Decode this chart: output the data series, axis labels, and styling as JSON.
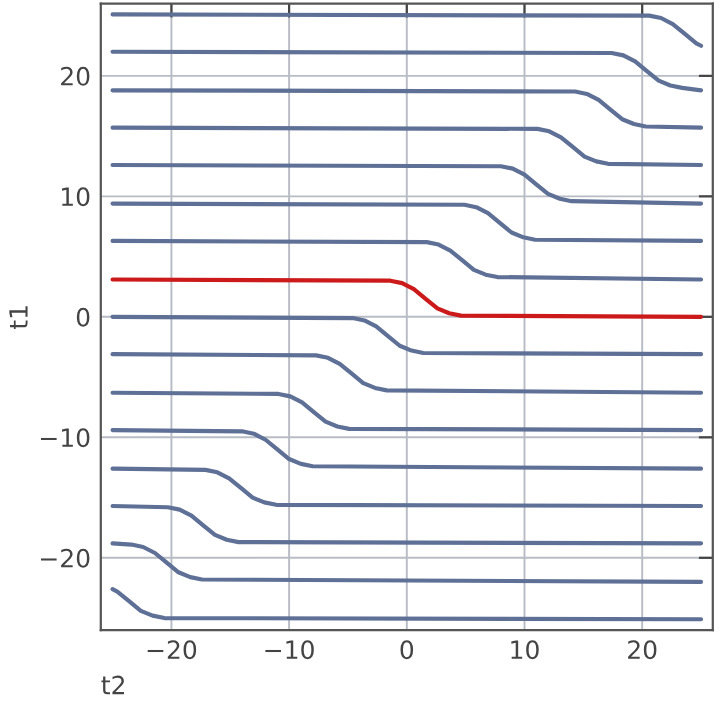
{
  "chart_data": {
    "type": "line",
    "xlabel": "t2",
    "ylabel": "t1",
    "xlim": [
      -26,
      26
    ],
    "ylim": [
      -26,
      26
    ],
    "xticks": [
      -20,
      -10,
      0,
      10,
      20
    ],
    "yticks": [
      -20,
      -10,
      0,
      10,
      20
    ],
    "grid": true,
    "legend": false,
    "marker": "none",
    "line_style": "solid",
    "series": [
      {
        "color": "#5f7096",
        "x": [
          -25,
          20.6,
          21.6,
          22.6,
          23.6,
          24.6,
          25
        ],
        "values": [
          25.1,
          25.0,
          24.8,
          24.3,
          23.5,
          22.7,
          22.5
        ]
      },
      {
        "color": "#5f7096",
        "x": [
          -25,
          17.4,
          18.4,
          19.4,
          20.4,
          21.4,
          22.4,
          23.4,
          25
        ],
        "values": [
          22.0,
          21.9,
          21.7,
          21.2,
          20.4,
          19.6,
          19.2,
          19.0,
          18.8
        ]
      },
      {
        "color": "#5f7096",
        "x": [
          -25,
          14.3,
          15.3,
          16.3,
          17.3,
          18.3,
          19.3,
          20.3,
          25
        ],
        "values": [
          18.8,
          18.7,
          18.5,
          18.0,
          17.2,
          16.4,
          16.0,
          15.8,
          15.7
        ]
      },
      {
        "color": "#5f7096",
        "x": [
          -25,
          11.1,
          12.1,
          13.1,
          14.1,
          15.1,
          16.1,
          17.1,
          25
        ],
        "values": [
          15.7,
          15.6,
          15.4,
          14.9,
          14.1,
          13.3,
          12.9,
          12.7,
          12.6
        ]
      },
      {
        "color": "#5f7096",
        "x": [
          -25,
          8,
          9,
          10,
          11,
          12,
          13,
          14,
          25
        ],
        "values": [
          12.6,
          12.5,
          12.3,
          11.8,
          11.0,
          10.2,
          9.8,
          9.6,
          9.4
        ]
      },
      {
        "color": "#5f7096",
        "x": [
          -25,
          4.9,
          5.9,
          6.9,
          7.9,
          8.9,
          9.9,
          10.9,
          25
        ],
        "values": [
          9.4,
          9.3,
          9.1,
          8.6,
          7.8,
          7.0,
          6.6,
          6.4,
          6.3
        ]
      },
      {
        "color": "#5f7096",
        "x": [
          -25,
          1.7,
          2.7,
          3.7,
          4.7,
          5.7,
          6.7,
          7.7,
          25
        ],
        "values": [
          6.3,
          6.2,
          6.0,
          5.5,
          4.7,
          3.9,
          3.5,
          3.3,
          3.1
        ]
      },
      {
        "color": "#cc1a1a",
        "x": [
          -25,
          -1.4,
          -0.4,
          0.6,
          1.6,
          2.6,
          3.6,
          4.6,
          25
        ],
        "values": [
          3.1,
          3.0,
          2.8,
          2.3,
          1.5,
          0.7,
          0.3,
          0.1,
          0
        ]
      },
      {
        "color": "#5f7096",
        "x": [
          -25,
          -4.6,
          -3.6,
          -2.6,
          -1.6,
          -0.6,
          0.4,
          1.4,
          25
        ],
        "values": [
          0,
          -0.1,
          -0.3,
          -0.8,
          -1.6,
          -2.4,
          -2.8,
          -3.0,
          -3.1
        ]
      },
      {
        "color": "#5f7096",
        "x": [
          -25,
          -7.7,
          -6.7,
          -5.7,
          -4.7,
          -3.7,
          -2.7,
          -1.7,
          25
        ],
        "values": [
          -3.1,
          -3.2,
          -3.4,
          -3.9,
          -4.7,
          -5.5,
          -5.9,
          -6.1,
          -6.3
        ]
      },
      {
        "color": "#5f7096",
        "x": [
          -25,
          -10.9,
          -9.9,
          -8.9,
          -7.9,
          -6.9,
          -5.9,
          -4.9,
          25
        ],
        "values": [
          -6.3,
          -6.4,
          -6.6,
          -7.1,
          -7.9,
          -8.7,
          -9.1,
          -9.3,
          -9.4
        ]
      },
      {
        "color": "#5f7096",
        "x": [
          -25,
          -14,
          -13,
          -12,
          -11,
          -10,
          -9,
          -8,
          25
        ],
        "values": [
          -9.4,
          -9.5,
          -9.7,
          -10.2,
          -11.0,
          -11.8,
          -12.2,
          -12.4,
          -12.6
        ]
      },
      {
        "color": "#5f7096",
        "x": [
          -25,
          -17.1,
          -16.1,
          -15.1,
          -14.1,
          -13.1,
          -12.1,
          -11.1,
          25
        ],
        "values": [
          -12.6,
          -12.7,
          -12.9,
          -13.4,
          -14.2,
          -15.0,
          -15.4,
          -15.6,
          -15.7
        ]
      },
      {
        "color": "#5f7096",
        "x": [
          -25,
          -20.3,
          -19.3,
          -18.3,
          -17.3,
          -16.3,
          -15.3,
          -14.3,
          25
        ],
        "values": [
          -15.7,
          -15.8,
          -16.0,
          -16.5,
          -17.3,
          -18.1,
          -18.5,
          -18.7,
          -18.8
        ]
      },
      {
        "color": "#5f7096",
        "x": [
          -25,
          -23.4,
          -22.4,
          -21.4,
          -20.4,
          -19.4,
          -18.4,
          -17.4,
          25
        ],
        "values": [
          -18.8,
          -18.9,
          -19.1,
          -19.6,
          -20.4,
          -21.2,
          -21.6,
          -21.8,
          -22.0
        ]
      },
      {
        "color": "#5f7096",
        "x": [
          -25,
          -24.6,
          -23.6,
          -22.6,
          -21.6,
          -20.6,
          25
        ],
        "values": [
          -22.6,
          -22.8,
          -23.6,
          -24.4,
          -24.8,
          -25.0,
          -25.1
        ]
      }
    ]
  }
}
